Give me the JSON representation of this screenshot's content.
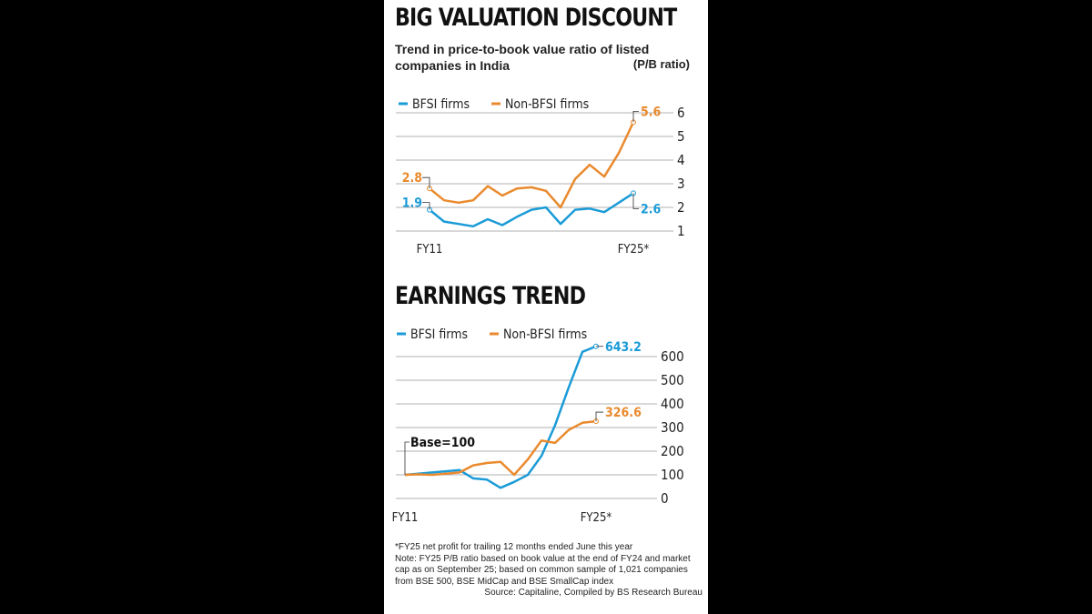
{
  "chart_data": [
    {
      "type": "line",
      "title": "BIG VALUATION DISCOUNT",
      "subtitle": "Trend in price-to-book value ratio of listed companies in India",
      "y_label": "(P/B ratio)",
      "categories": [
        "FY11",
        null,
        null,
        null,
        null,
        null,
        null,
        null,
        null,
        null,
        null,
        null,
        null,
        null,
        "FY25*"
      ],
      "series": [
        {
          "name": "BFSI firms",
          "color": "#1b9bd7",
          "values": [
            1.9,
            1.4,
            1.3,
            1.2,
            1.5,
            1.25,
            1.6,
            1.9,
            2.0,
            1.3,
            1.9,
            1.95,
            1.8,
            2.2,
            2.6
          ]
        },
        {
          "name": "Non-BFSI firms",
          "color": "#e98a2e",
          "values": [
            2.8,
            2.3,
            2.2,
            2.3,
            2.9,
            2.5,
            2.8,
            2.85,
            2.7,
            2.0,
            3.2,
            3.8,
            3.3,
            4.3,
            5.6
          ]
        }
      ],
      "ylim": [
        1,
        6
      ],
      "yticks": [
        1,
        2,
        3,
        4,
        5,
        6
      ],
      "grid": true
    },
    {
      "type": "line",
      "title": "EARNINGS TREND",
      "annotation": "Base=100",
      "categories": [
        "FY11",
        null,
        null,
        null,
        null,
        null,
        null,
        null,
        null,
        null,
        null,
        null,
        null,
        null,
        "FY25*"
      ],
      "series": [
        {
          "name": "BFSI firms",
          "color": "#1b9bd7",
          "values": [
            100,
            105,
            110,
            115,
            120,
            85,
            80,
            45,
            70,
            100,
            180,
            310,
            470,
            620,
            643.2
          ]
        },
        {
          "name": "Non-BFSI firms",
          "color": "#e98a2e",
          "values": [
            100,
            102,
            100,
            105,
            110,
            140,
            150,
            155,
            100,
            165,
            245,
            235,
            290,
            320,
            326.6
          ]
        }
      ],
      "ylim": [
        0,
        600
      ],
      "yticks": [
        0,
        100,
        200,
        300,
        400,
        500,
        600
      ],
      "grid": true
    }
  ],
  "footnote": {
    "asterisk": "*FY25 net profit for trailing 12 months ended June this year",
    "note": "Note: FY25 P/B ratio based on book value at the end of FY24 and market cap as on September 25; based on common sample of 1,021 companies from BSE 500, BSE MidCap and BSE SmallCap index",
    "source": "Source: Capitaline, Compiled by BS Research Bureau"
  }
}
